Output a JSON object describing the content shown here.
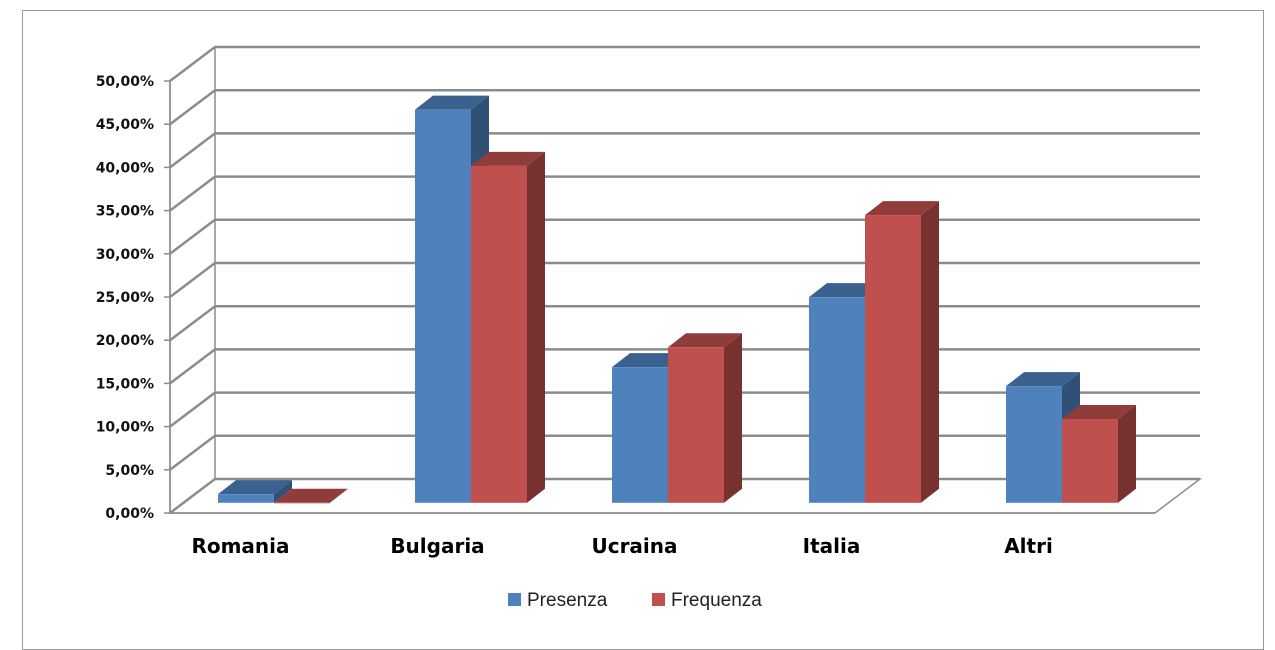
{
  "chart_data": {
    "type": "bar",
    "title": "",
    "xlabel": "",
    "ylabel": "",
    "categories": [
      "Romania",
      "Bulgaria",
      "Ucraina",
      "Italia",
      "Altri"
    ],
    "series": [
      {
        "name": "Presenza",
        "color": "#4F81BD",
        "values": [
          0.01,
          0.455,
          0.157,
          0.238,
          0.135
        ]
      },
      {
        "name": "Frequenza",
        "color": "#C0504D",
        "values": [
          0.0,
          0.39,
          0.18,
          0.333,
          0.097
        ]
      }
    ],
    "ylim": [
      0,
      0.5
    ],
    "yticks": [
      "0,00%",
      "5,00%",
      "10,00%",
      "15,00%",
      "20,00%",
      "25,00%",
      "30,00%",
      "35,00%",
      "40,00%",
      "45,00%",
      "50,00%"
    ],
    "grid": true,
    "legend_position": "bottom",
    "style": "3d-clustered-column"
  }
}
